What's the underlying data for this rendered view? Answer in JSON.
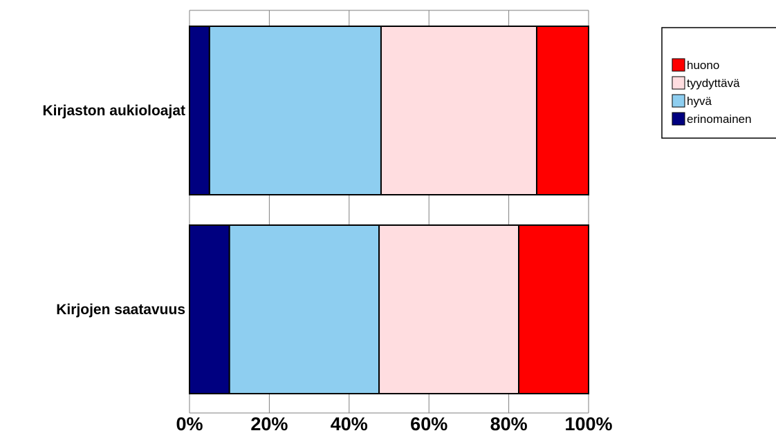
{
  "chart_data": {
    "type": "bar",
    "orientation": "horizontal",
    "stacked": "percent",
    "categories": [
      "Kirjaston aukioloajat",
      "Kirjojen saatavuus"
    ],
    "series": [
      {
        "name": "erinomainen",
        "color": "#000080",
        "values": [
          5,
          10
        ]
      },
      {
        "name": "hyvä",
        "color": "#8ecef0",
        "values": [
          43,
          37.5
        ]
      },
      {
        "name": "tyydyttävä",
        "color": "#ffdde0",
        "values": [
          39,
          35
        ]
      },
      {
        "name": "huono",
        "color": "#ff0000",
        "values": [
          13,
          17.5
        ]
      }
    ],
    "xlim": [
      0,
      100
    ],
    "xticks": [
      "0%",
      "20%",
      "40%",
      "60%",
      "80%",
      "100%"
    ],
    "legend_order": [
      "huono",
      "tyydyttävä",
      "hyvä",
      "erinomainen"
    ],
    "legend_position": "top-right",
    "grid": true
  }
}
